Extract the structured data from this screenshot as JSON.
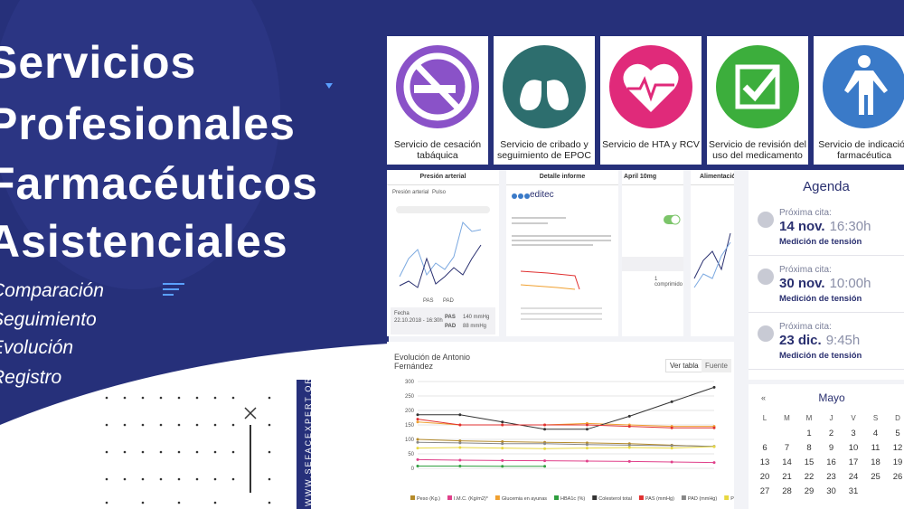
{
  "hero": {
    "title_lines": [
      "Servicios",
      "Profesionales",
      "Farmacéuticos",
      "Asistenciales"
    ],
    "list": [
      "Comparación",
      "Seguimiento",
      "Evolución",
      "Registro"
    ],
    "website": "WWW.SEFACEXPERT.ORG"
  },
  "services": [
    "Servicio de cesación tabáquica",
    "Servicio de cribado y seguimiento de EPOC",
    "Servicio de HTA y RCV",
    "Servicio de revisión del uso del medicamento",
    "Servicio de indicación farmacéutica"
  ],
  "phones": {
    "pressure": {
      "title": "Presión arterial",
      "tabs": [
        "Presión arterial",
        "Pulso"
      ],
      "legend": [
        "PAS",
        "PAD"
      ],
      "date_label": "Fecha",
      "date": "22.10.2018 - 16:30h",
      "rows": [
        [
          "PAS",
          "140 mmHg"
        ],
        [
          "PAD",
          "88 mmHg"
        ]
      ]
    },
    "report": {
      "title": "Detalle informe",
      "brand": "editec"
    },
    "medication": {
      "title": "April 10mg",
      "dose": "1 comprimido"
    },
    "food": {
      "title": "Alimentación"
    }
  },
  "agenda": {
    "title": "Agenda",
    "items": [
      {
        "label": "Próxima cita:",
        "date": "14 nov.",
        "time": "16:30h",
        "desc": "Medición de tensión"
      },
      {
        "label": "Próxima cita:",
        "date": "30 nov.",
        "time": "10:00h",
        "desc": "Medición de tensión"
      },
      {
        "label": "Próxima cita:",
        "date": "23 dic.",
        "time": "9:45h",
        "desc": "Medición de tensión"
      }
    ]
  },
  "calendar": {
    "month": "Mayo",
    "weekdays": [
      "L",
      "M",
      "M",
      "J",
      "V",
      "S",
      "D"
    ],
    "weeks": [
      [
        null,
        null,
        1,
        2,
        3,
        4,
        5
      ],
      [
        6,
        7,
        8,
        9,
        10,
        11,
        12
      ],
      [
        13,
        14,
        15,
        16,
        17,
        18,
        19
      ],
      [
        20,
        21,
        22,
        23,
        24,
        25,
        26
      ],
      [
        27,
        28,
        29,
        30,
        31,
        null,
        null
      ]
    ]
  },
  "chart_data": {
    "type": "line",
    "title": "Evolución de Antonio Fernández",
    "buttons": [
      "Ver tabla",
      "Fuente"
    ],
    "categories": [
      null,
      null,
      null,
      null,
      null,
      null,
      null,
      null
    ],
    "ylim": [
      0,
      300
    ],
    "yticks": [
      0,
      50,
      100,
      150,
      200,
      250,
      300
    ],
    "grid": true,
    "series": [
      {
        "name": "Peso (Kg.)",
        "color": "#b58b2a",
        "values": [
          100,
          95,
          92,
          90,
          88,
          85,
          80,
          75
        ]
      },
      {
        "name": "I.M.C. (Kg/m2)*",
        "color": "#e0408a",
        "values": [
          30,
          28,
          27,
          26,
          25,
          24,
          22,
          20
        ]
      },
      {
        "name": "Glucemia en ayunas",
        "color": "#f0a030",
        "values": [
          160,
          150,
          150,
          150,
          155,
          150,
          145,
          145
        ]
      },
      {
        "name": "HBA1c (%)",
        "color": "#2e9e3e",
        "values": [
          8,
          8,
          7,
          7,
          null,
          null,
          null,
          null
        ]
      },
      {
        "name": "Colesterol total",
        "color": "#333333",
        "values": [
          185,
          185,
          160,
          135,
          135,
          180,
          230,
          280
        ]
      },
      {
        "name": "PAS (mmHg)",
        "color": "#e03030",
        "values": [
          170,
          150,
          150,
          150,
          150,
          145,
          140,
          140
        ]
      },
      {
        "name": "PAD (mmHg)",
        "color": "#888888",
        "values": [
          90,
          88,
          85,
          85,
          82,
          80,
          78,
          76
        ]
      },
      {
        "name": "PULS (ppm)",
        "color": "#e8d840",
        "values": [
          70,
          72,
          70,
          68,
          70,
          72,
          70,
          75
        ]
      }
    ]
  }
}
